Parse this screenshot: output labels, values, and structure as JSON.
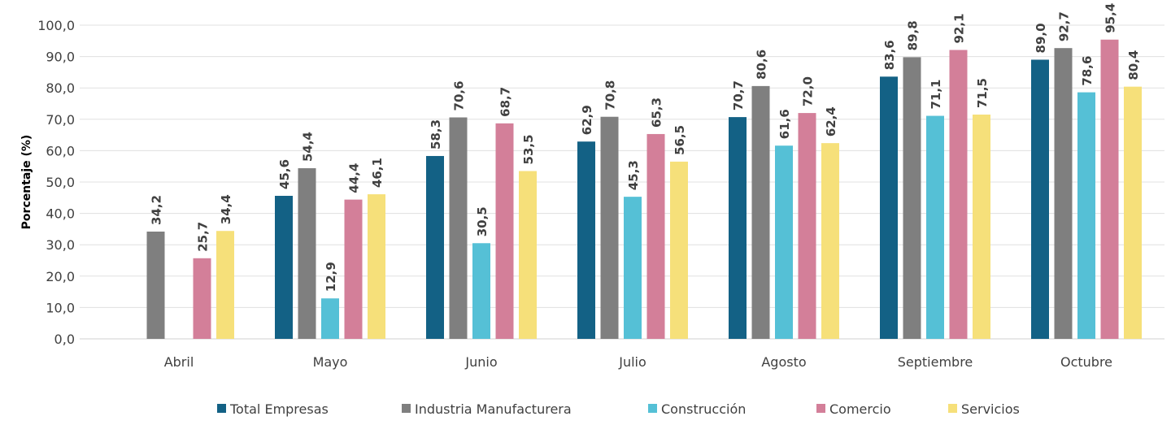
{
  "chart_data": {
    "type": "bar",
    "title": "",
    "xlabel": "",
    "ylabel": "Porcentaje (%)",
    "ylim": [
      0,
      100
    ],
    "yticks": [
      "0,0",
      "10,0",
      "20,0",
      "30,0",
      "40,0",
      "50,0",
      "60,0",
      "70,0",
      "80,0",
      "90,0",
      "100,0"
    ],
    "grid": true,
    "legend": "bottom",
    "categories": [
      "Abril",
      "Mayo",
      "Junio",
      "Julio",
      "Agosto",
      "Septiembre",
      "Octubre"
    ],
    "series": [
      {
        "name": "Total Empresas",
        "color": "#136185",
        "values": [
          null,
          45.6,
          58.3,
          62.9,
          70.7,
          83.6,
          89.0
        ]
      },
      {
        "name": "Industria Manufacturera",
        "color": "#7f7f7f",
        "values": [
          34.2,
          54.4,
          70.6,
          70.8,
          80.6,
          89.8,
          92.7
        ]
      },
      {
        "name": "Construcción",
        "color": "#55c0d6",
        "values": [
          null,
          12.9,
          30.5,
          45.3,
          61.6,
          71.1,
          78.6
        ]
      },
      {
        "name": "Comercio",
        "color": "#d37f99",
        "values": [
          25.7,
          44.4,
          68.7,
          65.3,
          72.0,
          92.1,
          95.4
        ]
      },
      {
        "name": "Servicios",
        "color": "#f6e07a",
        "values": [
          34.4,
          46.1,
          53.5,
          56.5,
          62.4,
          71.5,
          80.4
        ]
      }
    ]
  }
}
